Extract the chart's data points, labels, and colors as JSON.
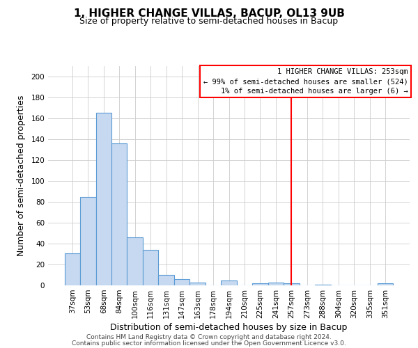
{
  "title": "1, HIGHER CHANGE VILLAS, BACUP, OL13 9UB",
  "subtitle": "Size of property relative to semi-detached houses in Bacup",
  "xlabel": "Distribution of semi-detached houses by size in Bacup",
  "ylabel": "Number of semi-detached properties",
  "bar_labels": [
    "37sqm",
    "53sqm",
    "68sqm",
    "84sqm",
    "100sqm",
    "116sqm",
    "131sqm",
    "147sqm",
    "163sqm",
    "178sqm",
    "194sqm",
    "210sqm",
    "225sqm",
    "241sqm",
    "257sqm",
    "273sqm",
    "288sqm",
    "304sqm",
    "320sqm",
    "335sqm",
    "351sqm"
  ],
  "bar_values": [
    31,
    85,
    165,
    136,
    46,
    34,
    10,
    6,
    3,
    0,
    5,
    0,
    2,
    3,
    2,
    0,
    1,
    0,
    0,
    0,
    2
  ],
  "bar_color": "#c6d9f0",
  "bar_edge_color": "#5b9bd5",
  "vline_x": 14,
  "vline_color": "#ff0000",
  "legend_line1": "1 HIGHER CHANGE VILLAS: 253sqm",
  "legend_line2": "← 99% of semi-detached houses are smaller (524)",
  "legend_line3": "1% of semi-detached houses are larger (6) →",
  "ylim": [
    0,
    210
  ],
  "yticks": [
    0,
    20,
    40,
    60,
    80,
    100,
    120,
    140,
    160,
    180,
    200
  ],
  "footer_line1": "Contains HM Land Registry data © Crown copyright and database right 2024.",
  "footer_line2": "Contains public sector information licensed under the Open Government Licence v3.0.",
  "background_color": "#ffffff",
  "grid_color": "#cccccc",
  "title_fontsize": 11,
  "subtitle_fontsize": 9,
  "axis_label_fontsize": 9,
  "tick_fontsize": 7.5,
  "legend_fontsize": 7.5,
  "footer_fontsize": 6.5
}
